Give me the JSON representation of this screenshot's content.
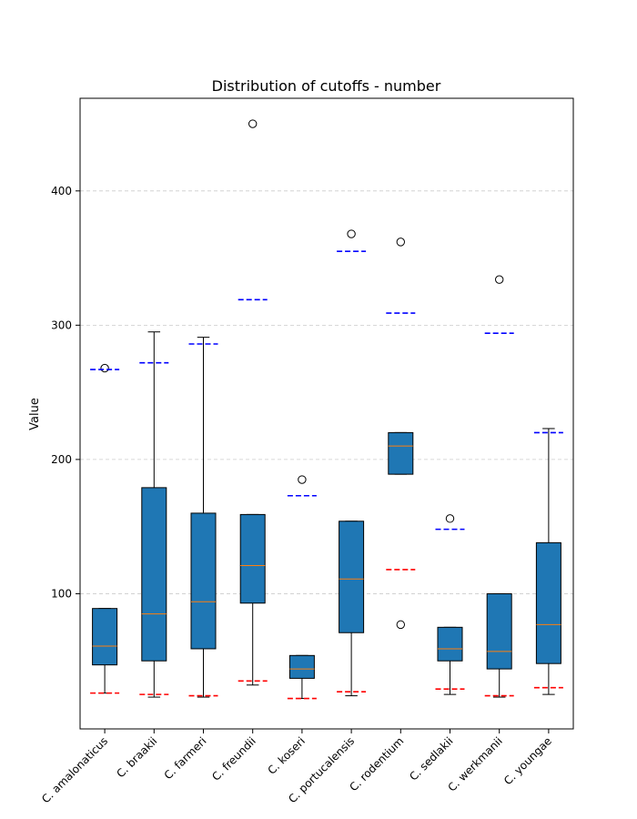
{
  "chart_data": {
    "type": "box",
    "title": "Distribution of cutoffs - number",
    "xlabel": "",
    "ylabel": "Value",
    "ylim": [
      0,
      470
    ],
    "yticks": [
      100,
      200,
      300,
      400
    ],
    "grid": "horizontal-dashed",
    "colors": {
      "box": "#1f77b4",
      "median": "#ff7f0e",
      "upper_ref": "#0000ff",
      "lower_ref": "#ff0000",
      "grid": "#cccccc"
    },
    "categories": [
      "C. amalonaticus",
      "C. braakii",
      "C. farmeri",
      "C. freundii",
      "C. koseri",
      "C. portucalensis",
      "C. rodentium",
      "C. sedlakii",
      "C. werkmanii",
      "C. youngae"
    ],
    "boxes": [
      {
        "whislo": 26,
        "q1": 47,
        "med": 61,
        "q3": 89,
        "whishi": 89,
        "fliers": [
          268
        ],
        "upper_ref": 267,
        "lower_ref": 26
      },
      {
        "whislo": 23,
        "q1": 50,
        "med": 85,
        "q3": 179,
        "whishi": 295,
        "fliers": [],
        "upper_ref": 272,
        "lower_ref": 25
      },
      {
        "whislo": 23,
        "q1": 59,
        "med": 94,
        "q3": 160,
        "whishi": 291,
        "fliers": [],
        "upper_ref": 286,
        "lower_ref": 24
      },
      {
        "whislo": 32,
        "q1": 93,
        "med": 121,
        "q3": 159,
        "whishi": 159,
        "fliers": [
          450
        ],
        "upper_ref": 319,
        "lower_ref": 35
      },
      {
        "whislo": 22,
        "q1": 37,
        "med": 44,
        "q3": 54,
        "whishi": 54,
        "fliers": [
          185
        ],
        "upper_ref": 173,
        "lower_ref": 22
      },
      {
        "whislo": 24,
        "q1": 71,
        "med": 111,
        "q3": 154,
        "whishi": 154,
        "fliers": [
          368
        ],
        "upper_ref": 355,
        "lower_ref": 27
      },
      {
        "whislo": 189,
        "q1": 189,
        "med": 210,
        "q3": 220,
        "whishi": 220,
        "fliers": [
          362,
          77
        ],
        "upper_ref": 309,
        "lower_ref": 118
      },
      {
        "whislo": 25,
        "q1": 50,
        "med": 59,
        "q3": 75,
        "whishi": 75,
        "fliers": [
          156
        ],
        "upper_ref": 148,
        "lower_ref": 29
      },
      {
        "whislo": 23,
        "q1": 44,
        "med": 57,
        "q3": 100,
        "whishi": 100,
        "fliers": [
          334
        ],
        "upper_ref": 294,
        "lower_ref": 24
      },
      {
        "whislo": 25,
        "q1": 48,
        "med": 77,
        "q3": 138,
        "whishi": 223,
        "fliers": [],
        "upper_ref": 220,
        "lower_ref": 30
      }
    ]
  }
}
